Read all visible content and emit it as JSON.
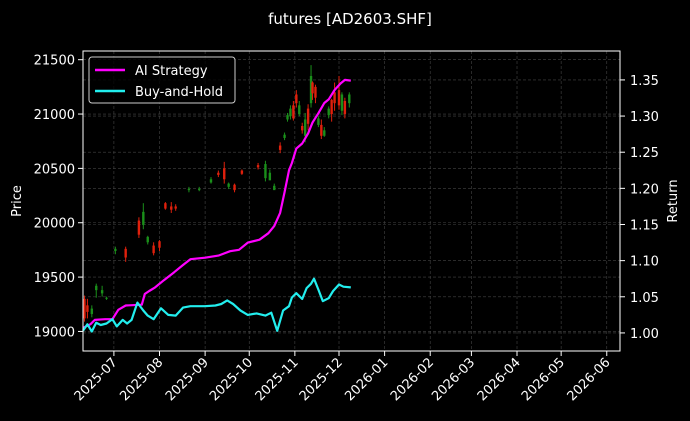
{
  "chart_data": {
    "type": "line",
    "title": "futures [AD2603.SHF]",
    "xlabel": "",
    "ylabel": "Price",
    "ylabel_right": "Return",
    "theme": {
      "background": "#000000",
      "foreground": "#ffffff",
      "grid": "#444444",
      "up_color": "#1a8f1a",
      "down_color": "#e0200c"
    },
    "x_ticks": [
      "2025-07",
      "2025-08",
      "2025-09",
      "2025-10",
      "2025-11",
      "2025-12",
      "2026-01",
      "2026-02",
      "2026-03",
      "2026-04",
      "2026-05",
      "2026-06"
    ],
    "x_range": [
      "2025-06-10",
      "2026-06-10"
    ],
    "y_left_ticks": [
      19000,
      19500,
      20000,
      20500,
      21000,
      21500
    ],
    "y_left_range": [
      18820,
      21580
    ],
    "y_right_ticks": [
      "1.00",
      "1.05",
      "1.10",
      "1.15",
      "1.20",
      "1.25",
      "1.30",
      "1.35"
    ],
    "y_right_range": [
      0.975,
      1.39
    ],
    "grid": true,
    "legend": {
      "position": "upper left",
      "entries": [
        {
          "label": "AI Strategy",
          "color": "#ff00ff"
        },
        {
          "label": "Buy-and-Hold",
          "color": "#22eeee"
        }
      ]
    },
    "series": [
      {
        "name": "AI Strategy",
        "axis": "right",
        "color": "#ff00ff",
        "x": [
          "2025-06-10",
          "2025-06-15",
          "2025-06-18",
          "2025-06-25",
          "2025-06-30",
          "2025-07-04",
          "2025-07-09",
          "2025-07-20",
          "2025-07-22",
          "2025-07-25",
          "2025-07-29",
          "2025-08-04",
          "2025-08-11",
          "2025-08-17",
          "2025-08-22",
          "2025-09-01",
          "2025-09-10",
          "2025-09-18",
          "2025-09-24",
          "2025-09-30",
          "2025-10-08",
          "2025-10-14",
          "2025-10-18",
          "2025-10-22",
          "2025-10-25",
          "2025-10-28",
          "2025-10-30",
          "2025-11-02",
          "2025-11-06",
          "2025-11-10",
          "2025-11-13",
          "2025-11-17",
          "2025-11-21",
          "2025-11-24",
          "2025-11-28",
          "2025-12-02",
          "2025-12-05",
          "2025-12-09"
        ],
        "values": [
          1.007,
          1.012,
          1.018,
          1.019,
          1.019,
          1.032,
          1.038,
          1.039,
          1.054,
          1.058,
          1.063,
          1.073,
          1.084,
          1.094,
          1.102,
          1.104,
          1.107,
          1.113,
          1.115,
          1.125,
          1.129,
          1.138,
          1.148,
          1.166,
          1.195,
          1.225,
          1.235,
          1.255,
          1.262,
          1.276,
          1.291,
          1.304,
          1.318,
          1.323,
          1.336,
          1.345,
          1.35,
          1.349
        ]
      },
      {
        "name": "Buy-and-Hold",
        "axis": "right",
        "color": "#22eeee",
        "x": [
          "2025-06-10",
          "2025-06-13",
          "2025-06-16",
          "2025-06-19",
          "2025-06-22",
          "2025-06-26",
          "2025-06-30",
          "2025-07-03",
          "2025-07-07",
          "2025-07-10",
          "2025-07-13",
          "2025-07-17",
          "2025-07-21",
          "2025-07-24",
          "2025-07-28",
          "2025-08-02",
          "2025-08-07",
          "2025-08-12",
          "2025-08-17",
          "2025-08-22",
          "2025-09-01",
          "2025-09-08",
          "2025-09-12",
          "2025-09-16",
          "2025-09-20",
          "2025-09-25",
          "2025-09-30",
          "2025-10-06",
          "2025-10-12",
          "2025-10-16",
          "2025-10-20",
          "2025-10-24",
          "2025-10-28",
          "2025-10-30",
          "2025-11-02",
          "2025-11-06",
          "2025-11-09",
          "2025-11-12",
          "2025-11-14",
          "2025-11-17",
          "2025-11-20",
          "2025-11-24",
          "2025-11-27",
          "2025-12-01",
          "2025-12-04",
          "2025-12-09"
        ],
        "values": [
          1.003,
          1.012,
          1.002,
          1.014,
          1.011,
          1.013,
          1.019,
          1.009,
          1.018,
          1.013,
          1.018,
          1.042,
          1.031,
          1.024,
          1.019,
          1.034,
          1.025,
          1.024,
          1.035,
          1.037,
          1.037,
          1.038,
          1.04,
          1.045,
          1.04,
          1.031,
          1.025,
          1.027,
          1.024,
          1.028,
          1.003,
          1.031,
          1.037,
          1.049,
          1.055,
          1.047,
          1.062,
          1.068,
          1.075,
          1.06,
          1.044,
          1.048,
          1.058,
          1.067,
          1.064,
          1.063
        ]
      }
    ],
    "candles_approx": {
      "axis": "left",
      "x": [
        "2025-06-11",
        "2025-06-13",
        "2025-06-16",
        "2025-06-19",
        "2025-06-23",
        "2025-06-26",
        "2025-07-02",
        "2025-07-09",
        "2025-07-18",
        "2025-07-21",
        "2025-07-24",
        "2025-07-28",
        "2025-08-01",
        "2025-08-05",
        "2025-08-09",
        "2025-08-12",
        "2025-08-21",
        "2025-08-28",
        "2025-09-05",
        "2025-09-10",
        "2025-09-14",
        "2025-09-17",
        "2025-09-21",
        "2025-09-26",
        "2025-10-07",
        "2025-10-12",
        "2025-10-15",
        "2025-10-18",
        "2025-10-22",
        "2025-10-25",
        "2025-10-27",
        "2025-10-29",
        "2025-10-31",
        "2025-11-02",
        "2025-11-04",
        "2025-11-06",
        "2025-11-08",
        "2025-11-10",
        "2025-11-12",
        "2025-11-13",
        "2025-11-15",
        "2025-11-17",
        "2025-11-19",
        "2025-11-21",
        "2025-11-24",
        "2025-11-26",
        "2025-11-28",
        "2025-12-01",
        "2025-12-03",
        "2025-12-05",
        "2025-12-08"
      ],
      "open": [
        19300,
        19240,
        19160,
        19380,
        19350,
        19300,
        19740,
        19760,
        20020,
        19980,
        19820,
        19790,
        19830,
        20180,
        20150,
        20150,
        20300,
        20300,
        20370,
        20460,
        20500,
        20330,
        20350,
        20480,
        20530,
        20410,
        20390,
        20300,
        20710,
        20780,
        20950,
        20980,
        21080,
        21180,
        21000,
        20890,
        20800,
        21050,
        21100,
        21290,
        21250,
        20900,
        20900,
        20800,
        20990,
        21130,
        21200,
        21220,
        21030,
        21120,
        21100
      ],
      "close": [
        19120,
        19180,
        19210,
        19420,
        19380,
        19310,
        19760,
        19680,
        19890,
        20100,
        19870,
        19720,
        19770,
        20130,
        20120,
        20130,
        20310,
        20310,
        20400,
        20440,
        20400,
        20360,
        20300,
        20450,
        20510,
        20540,
        20460,
        20340,
        20670,
        20810,
        20990,
        21050,
        20960,
        21100,
        21080,
        20850,
        20950,
        20910,
        21350,
        21190,
        21150,
        20960,
        20800,
        20850,
        21050,
        21000,
        21100,
        21080,
        21180,
        21000,
        21180
      ],
      "high": [
        19330,
        19300,
        19240,
        19440,
        19420,
        19320,
        19780,
        19780,
        20050,
        20180,
        19880,
        19820,
        19840,
        20190,
        20190,
        20170,
        20330,
        20330,
        20420,
        20480,
        20560,
        20370,
        20360,
        20490,
        20550,
        20570,
        20490,
        20360,
        20740,
        20830,
        21010,
        21080,
        21120,
        21220,
        21120,
        20920,
        21010,
        21090,
        21450,
        21300,
        21270,
        20980,
        20950,
        20880,
        21070,
        21140,
        21290,
        21350,
        21200,
        21150,
        21200
      ],
      "low": [
        19090,
        19120,
        19130,
        19310,
        19320,
        19290,
        19710,
        19640,
        19860,
        19940,
        19800,
        19700,
        19740,
        20120,
        20090,
        20110,
        20280,
        20290,
        20360,
        20420,
        20360,
        20310,
        20280,
        20440,
        20490,
        20380,
        20440,
        20330,
        20640,
        20760,
        20930,
        20950,
        20940,
        21060,
        20980,
        20820,
        20740,
        20850,
        21060,
        21130,
        21100,
        20880,
        20770,
        20790,
        20960,
        20930,
        21030,
        21040,
        20990,
        20960,
        21060
      ]
    }
  }
}
